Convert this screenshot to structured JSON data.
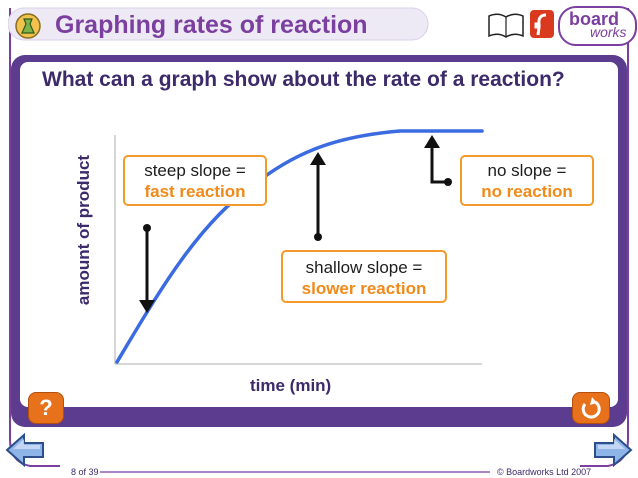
{
  "header": {
    "title": "Graphing rates of reaction",
    "logo_text_1": "board",
    "logo_text_2": "works"
  },
  "main": {
    "question": "What can a graph show about the rate of a reaction?",
    "callouts": [
      {
        "line1": "steep slope =",
        "line2": "fast reaction"
      },
      {
        "line1": "shallow slope =",
        "line2": "slower reaction"
      },
      {
        "line1": "no slope =",
        "line2": "no reaction"
      }
    ],
    "axis": {
      "ylabel": "amount of product",
      "xlabel": "time (min)"
    }
  },
  "footer": {
    "page": "8 of 39",
    "copyright": "© Boardworks Ltd 2007"
  },
  "buttons": {
    "help_label": "?"
  },
  "icons": [
    "flask-icon",
    "book-icon",
    "flash-icon",
    "help-icon",
    "undo-icon",
    "back-arrow-icon",
    "forward-arrow-icon"
  ],
  "colors": {
    "purple": "#5b3c8f",
    "orange": "#f39a2c",
    "curve_blue": "#3b6be0"
  }
}
